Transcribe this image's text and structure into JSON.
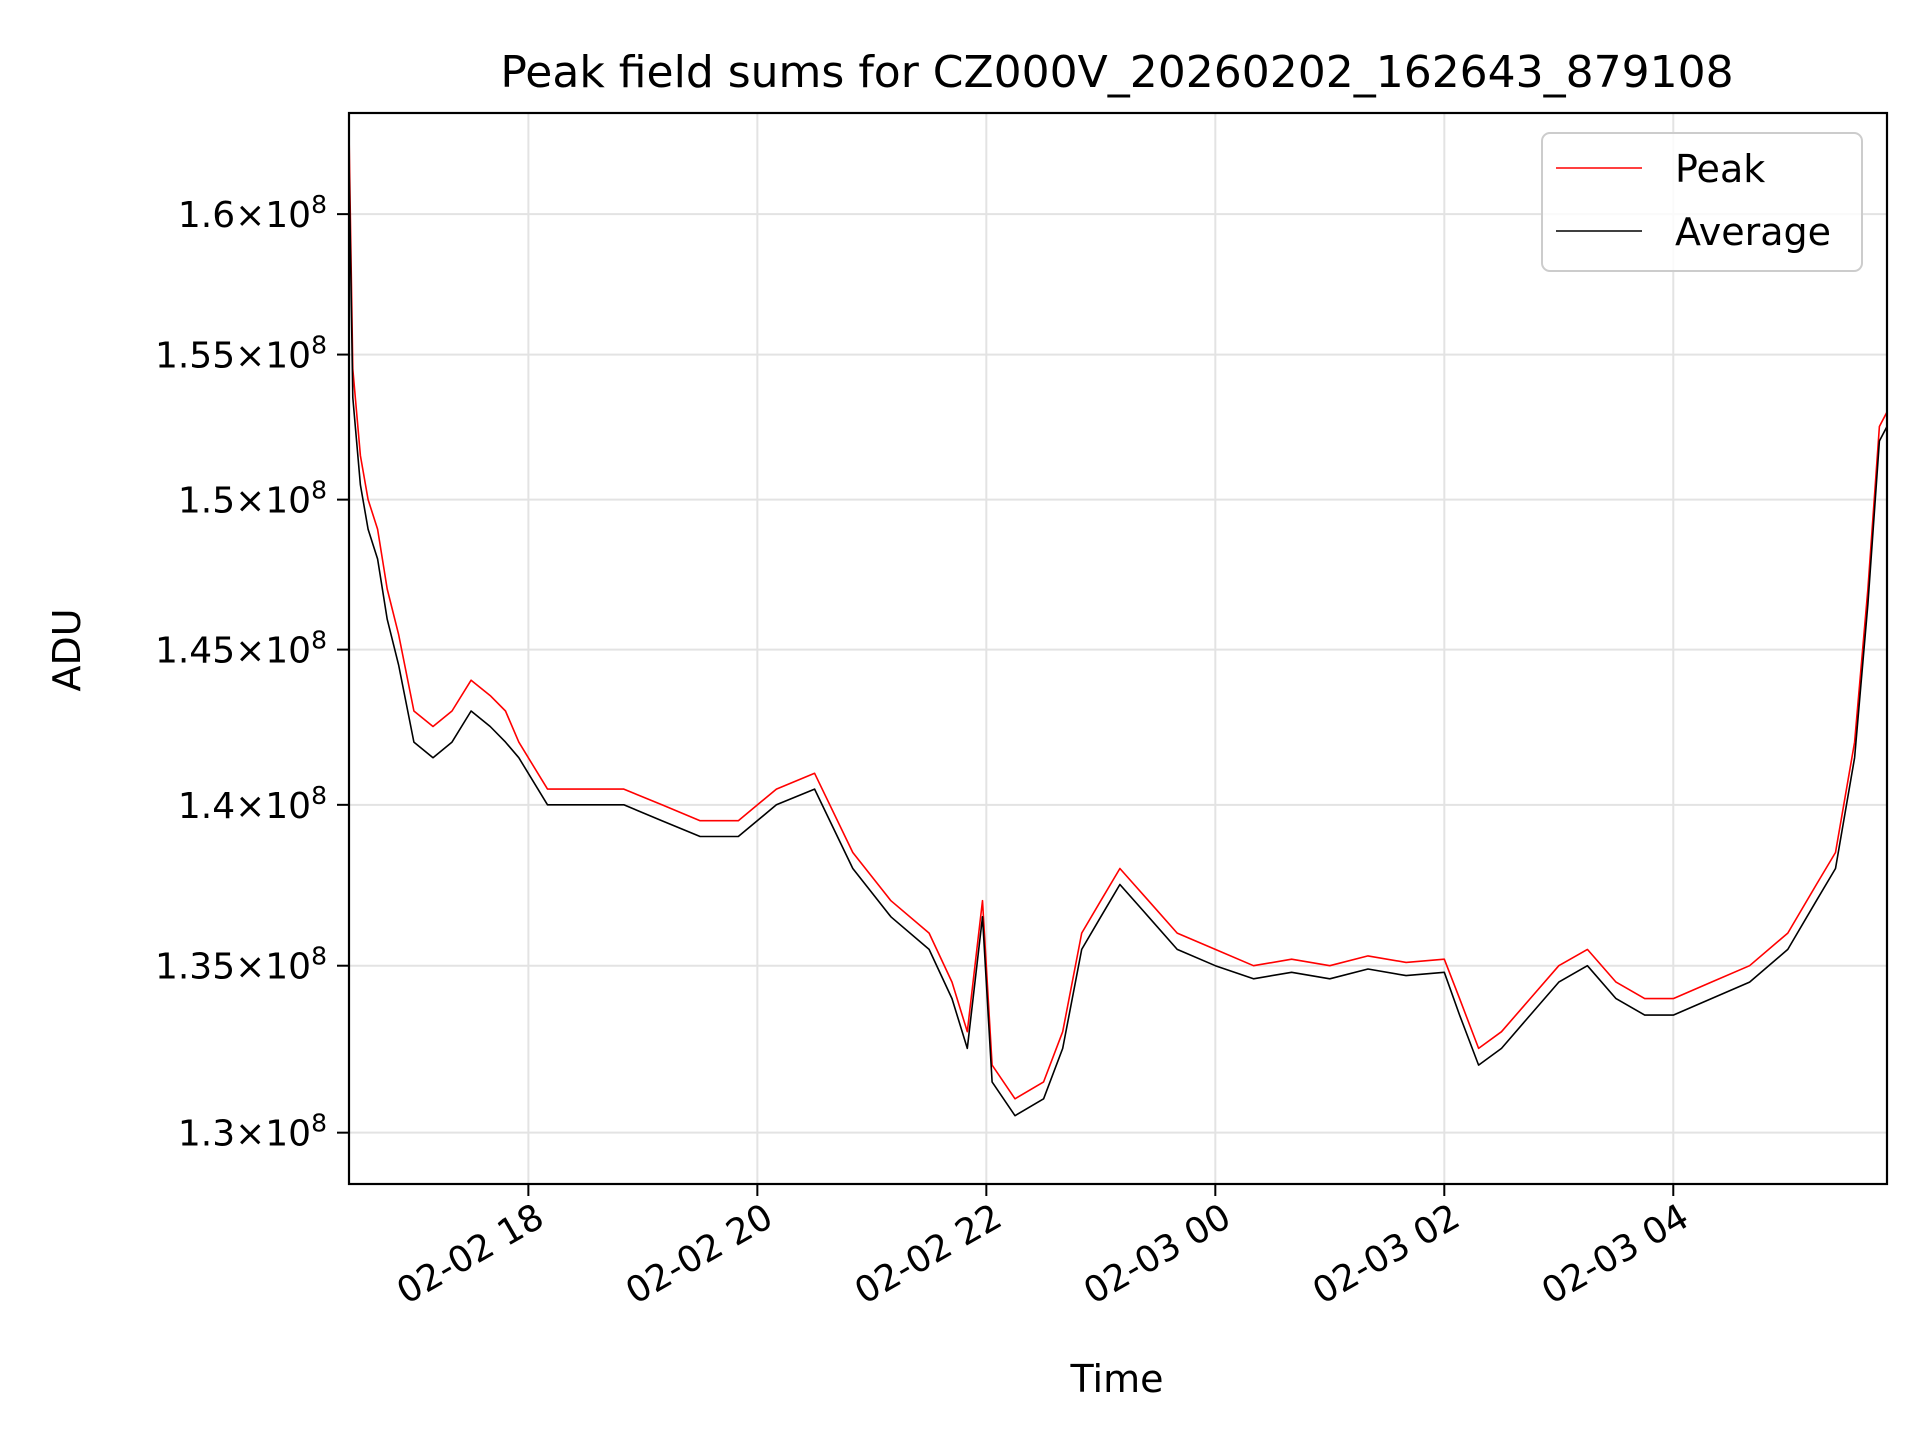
{
  "chart_data": {
    "type": "line",
    "title": "Peak field sums for CZ000V_20260202_162643_879108",
    "xlabel": "Time",
    "ylabel": "ADU",
    "x_range": [
      "2026-02-02 16:26",
      "2026-02-03 05:52"
    ],
    "ylim": [
      128500000,
      163700000
    ],
    "x_ticks": [
      {
        "value": "2026-02-02 18:00",
        "label": "02-02 18"
      },
      {
        "value": "2026-02-02 20:00",
        "label": "02-02 20"
      },
      {
        "value": "2026-02-02 22:00",
        "label": "02-02 22"
      },
      {
        "value": "2026-02-03 00:00",
        "label": "02-03 00"
      },
      {
        "value": "2026-02-03 02:00",
        "label": "02-03 02"
      },
      {
        "value": "2026-02-03 04:00",
        "label": "02-03 04"
      }
    ],
    "y_ticks": [
      {
        "value": 130000000,
        "mantissa": "1.3",
        "exp": "8"
      },
      {
        "value": 135000000,
        "mantissa": "1.35",
        "exp": "8"
      },
      {
        "value": 140000000,
        "mantissa": "1.4",
        "exp": "8"
      },
      {
        "value": 145000000,
        "mantissa": "1.45",
        "exp": "8"
      },
      {
        "value": 150000000,
        "mantissa": "1.5",
        "exp": "8"
      },
      {
        "value": 155000000,
        "mantissa": "1.55",
        "exp": "8"
      },
      {
        "value": 160000000,
        "mantissa": "1.6",
        "exp": "8"
      }
    ],
    "y_scale": "log",
    "grid": true,
    "legend_position": "top-right",
    "series": [
      {
        "name": "Peak",
        "color": "#ff0000",
        "x": [
          "2026-02-02 16:26",
          "2026-02-02 16:28",
          "2026-02-02 16:32",
          "2026-02-02 16:36",
          "2026-02-02 16:41",
          "2026-02-02 16:46",
          "2026-02-02 16:52",
          "2026-02-02 17:00",
          "2026-02-02 17:10",
          "2026-02-02 17:20",
          "2026-02-02 17:30",
          "2026-02-02 17:40",
          "2026-02-02 17:48",
          "2026-02-02 17:55",
          "2026-02-02 18:10",
          "2026-02-02 18:30",
          "2026-02-02 18:50",
          "2026-02-02 19:10",
          "2026-02-02 19:30",
          "2026-02-02 19:50",
          "2026-02-02 20:10",
          "2026-02-02 20:30",
          "2026-02-02 20:50",
          "2026-02-02 21:10",
          "2026-02-02 21:30",
          "2026-02-02 21:42",
          "2026-02-02 21:50",
          "2026-02-02 21:58",
          "2026-02-02 22:03",
          "2026-02-02 22:15",
          "2026-02-02 22:30",
          "2026-02-02 22:40",
          "2026-02-02 22:50",
          "2026-02-02 23:00",
          "2026-02-02 23:10",
          "2026-02-02 23:25",
          "2026-02-02 23:40",
          "2026-02-03 00:00",
          "2026-02-03 00:20",
          "2026-02-03 00:40",
          "2026-02-03 01:00",
          "2026-02-03 01:20",
          "2026-02-03 01:40",
          "2026-02-03 02:00",
          "2026-02-03 02:08",
          "2026-02-03 02:18",
          "2026-02-03 02:30",
          "2026-02-03 02:45",
          "2026-02-03 03:00",
          "2026-02-03 03:15",
          "2026-02-03 03:30",
          "2026-02-03 03:45",
          "2026-02-03 04:00",
          "2026-02-03 04:20",
          "2026-02-03 04:40",
          "2026-02-03 05:00",
          "2026-02-03 05:15",
          "2026-02-03 05:25",
          "2026-02-03 05:35",
          "2026-02-03 05:42",
          "2026-02-03 05:48",
          "2026-02-03 05:52"
        ],
        "values": [
          163000000,
          154500000,
          151500000,
          150000000,
          149000000,
          147000000,
          145500000,
          143000000,
          142500000,
          143000000,
          144000000,
          143500000,
          143000000,
          142000000,
          140500000,
          140500000,
          140500000,
          140000000,
          139500000,
          139500000,
          140500000,
          141000000,
          138500000,
          137000000,
          136000000,
          134500000,
          133000000,
          137000000,
          132000000,
          131000000,
          131500000,
          133000000,
          136000000,
          137000000,
          138000000,
          137000000,
          136000000,
          135500000,
          135000000,
          135200000,
          135000000,
          135300000,
          135100000,
          135200000,
          134000000,
          132500000,
          133000000,
          134000000,
          135000000,
          135500000,
          134500000,
          134000000,
          134000000,
          134500000,
          135000000,
          136000000,
          137500000,
          138500000,
          142000000,
          147000000,
          152500000,
          153000000
        ]
      },
      {
        "name": "Average",
        "color": "#000000",
        "x": [
          "2026-02-02 16:26",
          "2026-02-02 16:28",
          "2026-02-02 16:32",
          "2026-02-02 16:36",
          "2026-02-02 16:41",
          "2026-02-02 16:46",
          "2026-02-02 16:52",
          "2026-02-02 17:00",
          "2026-02-02 17:10",
          "2026-02-02 17:20",
          "2026-02-02 17:30",
          "2026-02-02 17:40",
          "2026-02-02 17:48",
          "2026-02-02 17:55",
          "2026-02-02 18:10",
          "2026-02-02 18:30",
          "2026-02-02 18:50",
          "2026-02-02 19:10",
          "2026-02-02 19:30",
          "2026-02-02 19:50",
          "2026-02-02 20:10",
          "2026-02-02 20:30",
          "2026-02-02 20:50",
          "2026-02-02 21:10",
          "2026-02-02 21:30",
          "2026-02-02 21:42",
          "2026-02-02 21:50",
          "2026-02-02 21:58",
          "2026-02-02 22:03",
          "2026-02-02 22:15",
          "2026-02-02 22:30",
          "2026-02-02 22:40",
          "2026-02-02 22:50",
          "2026-02-02 23:00",
          "2026-02-02 23:10",
          "2026-02-02 23:25",
          "2026-02-02 23:40",
          "2026-02-03 00:00",
          "2026-02-03 00:20",
          "2026-02-03 00:40",
          "2026-02-03 01:00",
          "2026-02-03 01:20",
          "2026-02-03 01:40",
          "2026-02-03 02:00",
          "2026-02-03 02:08",
          "2026-02-03 02:18",
          "2026-02-03 02:30",
          "2026-02-03 02:45",
          "2026-02-03 03:00",
          "2026-02-03 03:15",
          "2026-02-03 03:30",
          "2026-02-03 03:45",
          "2026-02-03 04:00",
          "2026-02-03 04:20",
          "2026-02-03 04:40",
          "2026-02-03 05:00",
          "2026-02-03 05:15",
          "2026-02-03 05:25",
          "2026-02-03 05:35",
          "2026-02-03 05:42",
          "2026-02-03 05:48",
          "2026-02-03 05:52"
        ],
        "values": [
          162000000,
          153500000,
          150500000,
          149000000,
          148000000,
          146000000,
          144500000,
          142000000,
          141500000,
          142000000,
          143000000,
          142500000,
          142000000,
          141500000,
          140000000,
          140000000,
          140000000,
          139500000,
          139000000,
          139000000,
          140000000,
          140500000,
          138000000,
          136500000,
          135500000,
          134000000,
          132500000,
          136500000,
          131500000,
          130500000,
          131000000,
          132500000,
          135500000,
          136500000,
          137500000,
          136500000,
          135500000,
          135000000,
          134600000,
          134800000,
          134600000,
          134900000,
          134700000,
          134800000,
          133500000,
          132000000,
          132500000,
          133500000,
          134500000,
          135000000,
          134000000,
          133500000,
          133500000,
          134000000,
          134500000,
          135500000,
          137000000,
          138000000,
          141500000,
          146500000,
          152000000,
          152500000
        ]
      }
    ]
  }
}
